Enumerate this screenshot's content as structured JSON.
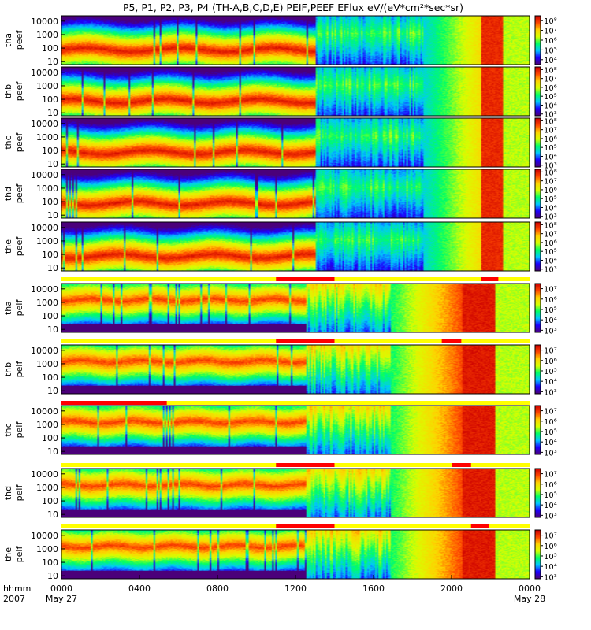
{
  "chart_data": {
    "type": "heatmap",
    "title": "P5, P1, P2, P3, P4 (TH-A,B,C,D,E) PEIF,PEEF EFlux eV/(eV*cm²*sec*sr)",
    "x": {
      "label_rows": [
        "hhmm",
        "2007"
      ],
      "ticks": [
        "0000",
        "0400",
        "0800",
        "1200",
        "1600",
        "2000",
        "0000"
      ],
      "tick_hours": [
        0,
        4,
        8,
        12,
        16,
        20,
        24
      ],
      "date_labels": [
        "May 27",
        "May 28"
      ],
      "range_hours": [
        0,
        24
      ]
    },
    "y": {
      "scale": "log",
      "range": [
        6,
        25000
      ],
      "tick_labels": [
        "10",
        "100",
        "1000",
        "10000"
      ]
    },
    "colorbar": {
      "scale": "log",
      "colors": [
        "#4b007a",
        "#1c00ff",
        "#00c8ff",
        "#00ff64",
        "#d8ff00",
        "#ffd200",
        "#ff4800",
        "#cc0000"
      ]
    },
    "panels": [
      {
        "id": "tha-peef",
        "label": [
          "tha",
          "peef"
        ],
        "cbar_ticks": [
          "10⁴",
          "10⁵",
          "10⁶",
          "10⁷",
          "10⁸"
        ],
        "cbar_range_exp": [
          3.5,
          8.5
        ]
      },
      {
        "id": "thb-peef",
        "label": [
          "thb",
          "peef"
        ],
        "cbar_ticks": [
          "10³",
          "10⁴",
          "10⁵",
          "10⁶",
          "10⁷",
          "10⁸"
        ],
        "cbar_range_exp": [
          2.8,
          8.3
        ]
      },
      {
        "id": "thc-peef",
        "label": [
          "thc",
          "peef"
        ],
        "cbar_ticks": [
          "10³",
          "10⁴",
          "10⁵",
          "10⁶",
          "10⁷",
          "10⁸"
        ],
        "cbar_range_exp": [
          2.8,
          8.3
        ]
      },
      {
        "id": "thd-peef",
        "label": [
          "thd",
          "peef"
        ],
        "cbar_ticks": [
          "10³",
          "10⁴",
          "10⁵",
          "10⁶",
          "10⁷",
          "10⁸"
        ],
        "cbar_range_exp": [
          2.8,
          8.3
        ]
      },
      {
        "id": "the-peef",
        "label": [
          "the",
          "peef"
        ],
        "cbar_ticks": [
          "10³",
          "10⁴",
          "10⁵",
          "10⁶",
          "10⁷",
          "10⁸"
        ],
        "cbar_range_exp": [
          2.8,
          8.3
        ]
      },
      {
        "id": "tha-peif",
        "label": [
          "tha",
          "peif"
        ],
        "cbar_ticks": [
          "10³",
          "10⁴",
          "10⁵",
          "10⁶",
          "10⁷"
        ],
        "cbar_range_exp": [
          2.8,
          7.5
        ]
      },
      {
        "id": "thb-peif",
        "label": [
          "thb",
          "peif"
        ],
        "cbar_ticks": [
          "10³",
          "10⁴",
          "10⁵",
          "10⁶",
          "10⁷"
        ],
        "cbar_range_exp": [
          2.8,
          7.5
        ]
      },
      {
        "id": "thc-peif",
        "label": [
          "thc",
          "peif"
        ],
        "cbar_ticks": [
          "10³",
          "10⁴",
          "10⁵",
          "10⁶",
          "10⁷"
        ],
        "cbar_range_exp": [
          2.8,
          7.5
        ]
      },
      {
        "id": "thd-peif",
        "label": [
          "thd",
          "peif"
        ],
        "cbar_ticks": [
          "10³",
          "10⁴",
          "10⁵",
          "10⁶",
          "10⁷"
        ],
        "cbar_range_exp": [
          2.8,
          7.5
        ]
      },
      {
        "id": "the-peif",
        "label": [
          "the",
          "peif"
        ],
        "cbar_ticks": [
          "10³",
          "10⁴",
          "10⁵",
          "10⁶",
          "10⁷"
        ],
        "cbar_range_exp": [
          2.8,
          7.5
        ]
      }
    ],
    "mode_bars": [
      {
        "above_panel": "tha-peif",
        "red_intervals_hours": [
          [
            11.0,
            14.0
          ],
          [
            21.5,
            22.4
          ]
        ]
      },
      {
        "above_panel": "thb-peif",
        "red_intervals_hours": [
          [
            11.0,
            14.0
          ],
          [
            19.5,
            20.5
          ]
        ]
      },
      {
        "above_panel": "thc-peif",
        "red_intervals_hours": [
          [
            0.0,
            5.4
          ]
        ]
      },
      {
        "above_panel": "thd-peif",
        "red_intervals_hours": [
          [
            11.0,
            14.0
          ],
          [
            20.0,
            21.0
          ]
        ]
      },
      {
        "above_panel": "the-peif",
        "red_intervals_hours": [
          [
            11.0,
            14.0
          ],
          [
            21.0,
            21.9
          ]
        ]
      }
    ],
    "mode_bar_colors": {
      "base": "#ffff00",
      "burst": "#ff0000"
    }
  }
}
